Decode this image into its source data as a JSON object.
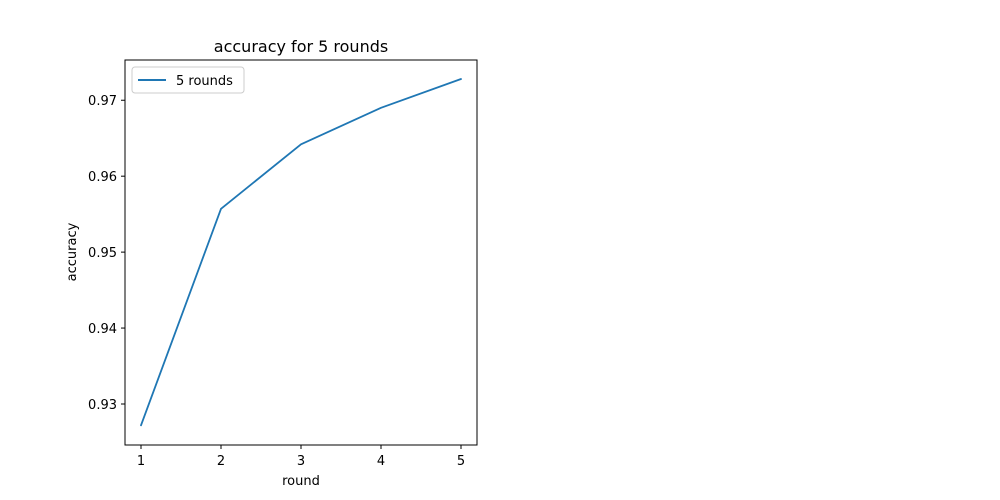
{
  "chart_data": {
    "type": "line",
    "title": "accuracy for 5 rounds",
    "xlabel": "round",
    "ylabel": "accuracy",
    "x": [
      1,
      2,
      3,
      4,
      5
    ],
    "series": [
      {
        "name": "5 rounds",
        "values": [
          0.9272,
          0.9557,
          0.9642,
          0.969,
          0.9728
        ],
        "color": "#1f77b4"
      }
    ],
    "xlim": [
      0.8,
      5.2
    ],
    "ylim": [
      0.9246,
      0.9753
    ],
    "xticks": [
      1,
      2,
      3,
      4,
      5
    ],
    "xtick_labels": [
      "1",
      "2",
      "3",
      "4",
      "5"
    ],
    "yticks": [
      0.93,
      0.94,
      0.95,
      0.96,
      0.97
    ],
    "ytick_labels": [
      "0.93",
      "0.94",
      "0.95",
      "0.96",
      "0.97"
    ],
    "grid": false,
    "legend_position": "upper-left"
  }
}
